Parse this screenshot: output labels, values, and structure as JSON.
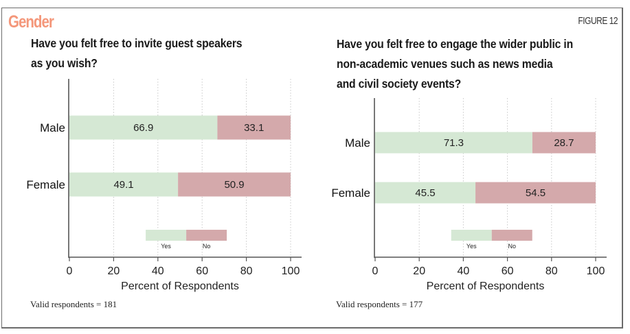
{
  "header": {
    "section_title": "Gender",
    "figure_label": "FIGURE 12"
  },
  "colors": {
    "yes": "#d5e8d4",
    "no": "#d4a9ab",
    "accent": "#f4977a"
  },
  "chart_data": [
    {
      "type": "bar",
      "orientation": "horizontal",
      "stacked": true,
      "title": "Have you felt free to invite guest speakers as you wish?",
      "title_lines": [
        "Have you felt free to invite guest speakers",
        "as you wish?"
      ],
      "categories": [
        "Male",
        "Female"
      ],
      "series": [
        {
          "name": "Yes",
          "values": [
            66.9,
            49.1
          ]
        },
        {
          "name": "No",
          "values": [
            33.1,
            50.9
          ]
        }
      ],
      "data_labels": [
        [
          "66.9",
          "49.1"
        ],
        [
          "33.1",
          "50.9"
        ]
      ],
      "xlabel": "Percent of Respondents",
      "ylabel": "",
      "xlim": [
        0,
        100
      ],
      "xticks": [
        0,
        20,
        40,
        60,
        80,
        100
      ],
      "xtick_labels": [
        "0",
        "20",
        "40",
        "60",
        "80",
        "100"
      ],
      "grid": "vertical-dotted",
      "legend": {
        "position": "bottom-center-inside",
        "entries": [
          "Yes",
          "No"
        ]
      },
      "footnote": "Valid respondents = 181"
    },
    {
      "type": "bar",
      "orientation": "horizontal",
      "stacked": true,
      "title": "Have you felt free to engage the wider public in non-academic venues such as news media and civil society events?",
      "title_lines": [
        "Have you felt free to engage the wider public in",
        "non-academic venues such as news media",
        "and civil society events?"
      ],
      "categories": [
        "Male",
        "Female"
      ],
      "series": [
        {
          "name": "Yes",
          "values": [
            71.3,
            45.5
          ]
        },
        {
          "name": "No",
          "values": [
            28.7,
            54.5
          ]
        }
      ],
      "data_labels": [
        [
          "71.3",
          "45.5"
        ],
        [
          "28.7",
          "54.5"
        ]
      ],
      "xlabel": "Percent of Respondents",
      "ylabel": "",
      "xlim": [
        0,
        100
      ],
      "xticks": [
        0,
        20,
        40,
        60,
        80,
        100
      ],
      "xtick_labels": [
        "0",
        "20",
        "40",
        "60",
        "80",
        "100"
      ],
      "grid": "vertical-dotted",
      "legend": {
        "position": "bottom-center-inside",
        "entries": [
          "Yes",
          "No"
        ]
      },
      "footnote": "Valid respondents = 177"
    }
  ]
}
